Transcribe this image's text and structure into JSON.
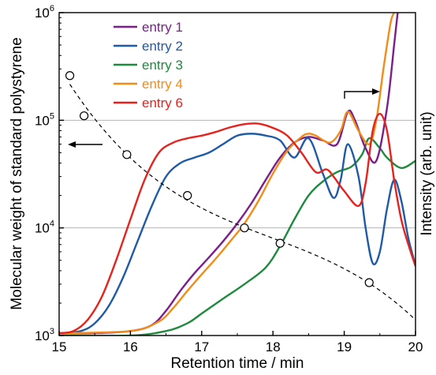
{
  "chart_data": {
    "type": "line",
    "xlabel": "Retention time / min",
    "ylabel_left": "Molecular weight of standard polystyrene",
    "ylabel_right": "Intensity (arb. unit)",
    "xlim": [
      15,
      20
    ],
    "ylim_left": [
      1000,
      1000000
    ],
    "y_scale_left": "log",
    "x_ticks": [
      "15",
      "16",
      "17",
      "18",
      "19",
      "20"
    ],
    "y_ticks_left": [
      {
        "base": "10",
        "exp": "3",
        "value": 1000
      },
      {
        "base": "10",
        "exp": "4",
        "value": 10000
      },
      {
        "base": "10",
        "exp": "5",
        "value": 100000
      },
      {
        "base": "10",
        "exp": "6",
        "value": 1000000
      }
    ],
    "grid": "horizontal at 10^4 and 10^5",
    "legend_position": "top-left",
    "calibration": {
      "style": "dashed black line with open circles",
      "axis": "left",
      "x": [
        15.15,
        15.35,
        15.95,
        16.8,
        17.6,
        18.1,
        19.35
      ],
      "y": [
        260000,
        110000,
        48000,
        20000,
        10000,
        7200,
        3100
      ]
    },
    "series": [
      {
        "name": "entry 1",
        "color": "#7b1e8c",
        "axis": "right (intensity, left-axis scale)",
        "x": [
          15.0,
          15.5,
          16.0,
          16.3,
          16.5,
          16.7,
          16.9,
          17.1,
          17.3,
          17.5,
          17.7,
          17.9,
          18.1,
          18.3,
          18.5,
          18.7,
          18.9,
          19.05,
          19.15,
          19.3,
          19.45,
          19.6,
          19.7,
          19.75
        ],
        "y": [
          1050,
          1050,
          1100,
          1250,
          1700,
          2600,
          3800,
          5300,
          7500,
          11000,
          17000,
          28000,
          45000,
          62000,
          70000,
          65000,
          60000,
          120000,
          100000,
          55000,
          42000,
          130000,
          500000,
          1000000
        ]
      },
      {
        "name": "entry 2",
        "color": "#1f5aa6",
        "axis": "right (intensity, left-axis scale)",
        "x": [
          15.0,
          15.3,
          15.5,
          15.7,
          15.9,
          16.1,
          16.3,
          16.5,
          16.7,
          16.9,
          17.1,
          17.3,
          17.5,
          17.7,
          17.9,
          18.1,
          18.3,
          18.5,
          18.7,
          18.85,
          18.95,
          19.05,
          19.2,
          19.3,
          19.4,
          19.5,
          19.6,
          19.7,
          19.8,
          19.9,
          20.0
        ],
        "y": [
          1050,
          1100,
          1300,
          1900,
          3500,
          7500,
          16000,
          30000,
          40000,
          45000,
          50000,
          60000,
          72000,
          75000,
          72000,
          65000,
          45000,
          68000,
          32000,
          19000,
          28000,
          60000,
          30000,
          10000,
          4700,
          6000,
          15000,
          28000,
          18000,
          8000,
          4500
        ]
      },
      {
        "name": "entry 3",
        "color": "#1e8a3c",
        "axis": "right (intensity, left-axis scale)",
        "x": [
          15.0,
          16.0,
          16.5,
          16.8,
          17.0,
          17.3,
          17.6,
          17.9,
          18.1,
          18.3,
          18.5,
          18.7,
          18.9,
          19.1,
          19.25,
          19.35,
          19.5,
          19.6,
          19.8,
          20.0
        ],
        "y": [
          1000,
          1000,
          1100,
          1300,
          1600,
          2200,
          3000,
          4300,
          6800,
          12000,
          20000,
          27000,
          33000,
          37000,
          48000,
          68000,
          55000,
          45000,
          36000,
          42000
        ]
      },
      {
        "name": "entry 4",
        "color": "#f28c16",
        "axis": "right (intensity, left-axis scale)",
        "x": [
          15.0,
          16.0,
          16.4,
          16.6,
          16.8,
          17.0,
          17.2,
          17.4,
          17.6,
          17.8,
          18.0,
          18.2,
          18.4,
          18.5,
          18.6,
          18.8,
          18.95,
          19.05,
          19.2,
          19.35,
          19.45,
          19.55,
          19.65,
          19.7
        ],
        "y": [
          1050,
          1100,
          1350,
          1800,
          2600,
          3700,
          5200,
          7500,
          11000,
          18000,
          32000,
          52000,
          70000,
          75000,
          72000,
          62000,
          80000,
          120000,
          80000,
          60000,
          100000,
          300000,
          800000,
          1000000
        ]
      },
      {
        "name": "entry 6",
        "color": "#e8211c",
        "axis": "right (intensity, left-axis scale)",
        "x": [
          15.0,
          15.2,
          15.4,
          15.6,
          15.8,
          16.0,
          16.2,
          16.4,
          16.6,
          16.8,
          17.0,
          17.2,
          17.4,
          17.6,
          17.8,
          18.0,
          18.2,
          18.4,
          18.6,
          18.75,
          18.85,
          19.0,
          19.2,
          19.3,
          19.4,
          19.5,
          19.6,
          19.7,
          19.8,
          19.9,
          20.0
        ],
        "y": [
          1050,
          1100,
          1400,
          2300,
          5000,
          12000,
          28000,
          50000,
          62000,
          68000,
          72000,
          78000,
          86000,
          92000,
          93000,
          85000,
          72000,
          50000,
          33000,
          35000,
          30000,
          22000,
          16000,
          26000,
          80000,
          115000,
          80000,
          28000,
          12000,
          7000,
          4400
        ]
      }
    ],
    "annotations": [
      {
        "type": "arrow",
        "direction": "left",
        "meaning": "calibration line uses left axis"
      },
      {
        "type": "arrow",
        "direction": "right",
        "meaning": "chromatograms use right axis"
      }
    ]
  }
}
